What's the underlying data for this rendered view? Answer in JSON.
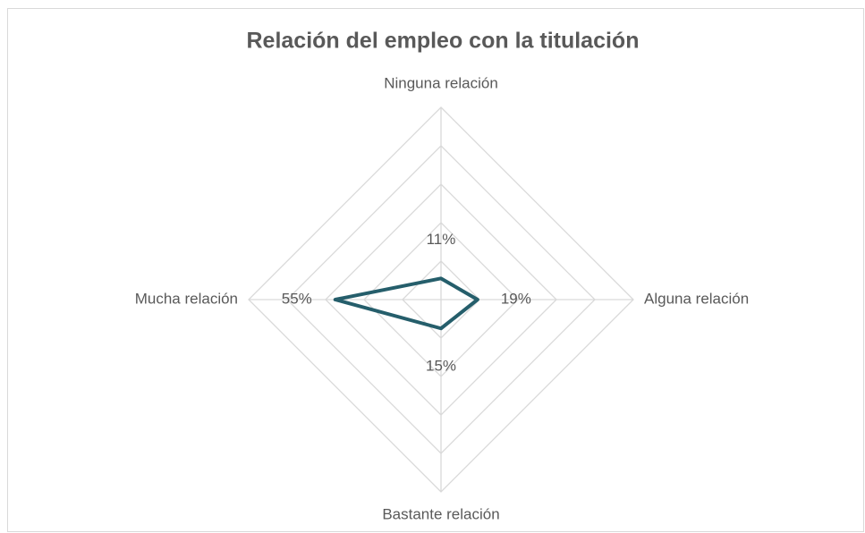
{
  "chart_data": {
    "type": "radar",
    "title": "Relación del empleo con la titulación",
    "categories": [
      "Ninguna relación",
      "Alguna relación",
      "Bastante relación",
      "Mucha relación"
    ],
    "values": [
      11,
      19,
      15,
      55
    ],
    "value_labels": [
      "11%",
      "19%",
      "15%",
      "55%"
    ],
    "color": "#255e6b",
    "rlim": [
      0,
      100
    ],
    "rticks": [
      0,
      20,
      40,
      60,
      80,
      100
    ],
    "grid": true
  }
}
